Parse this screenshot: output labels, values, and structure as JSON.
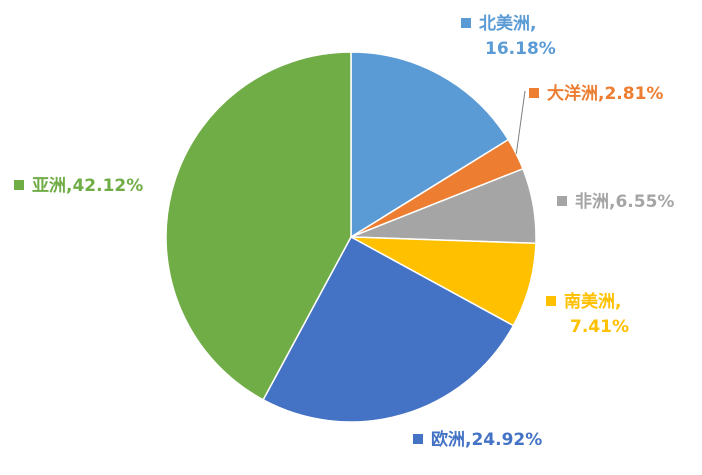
{
  "chart_data": {
    "type": "pie",
    "title": "",
    "start_angle_deg": 0,
    "direction": "clockwise",
    "legend": "labels-with-swatches",
    "slices": [
      {
        "label": "北美洲",
        "value": 16.18,
        "display": "16.18%",
        "color": "#5B9BD5"
      },
      {
        "label": "大洋洲",
        "value": 2.81,
        "display": "2.81%",
        "color": "#ED7D31"
      },
      {
        "label": "非洲",
        "value": 6.55,
        "display": "6.55%",
        "color": "#A5A5A5"
      },
      {
        "label": "南美洲",
        "value": 7.41,
        "display": "7.41%",
        "color": "#FFC000"
      },
      {
        "label": "欧洲",
        "value": 24.92,
        "display": "24.92%",
        "color": "#4472C4"
      },
      {
        "label": "亚洲",
        "value": 42.12,
        "display": "42.12%",
        "color": "#70AD47"
      }
    ]
  }
}
